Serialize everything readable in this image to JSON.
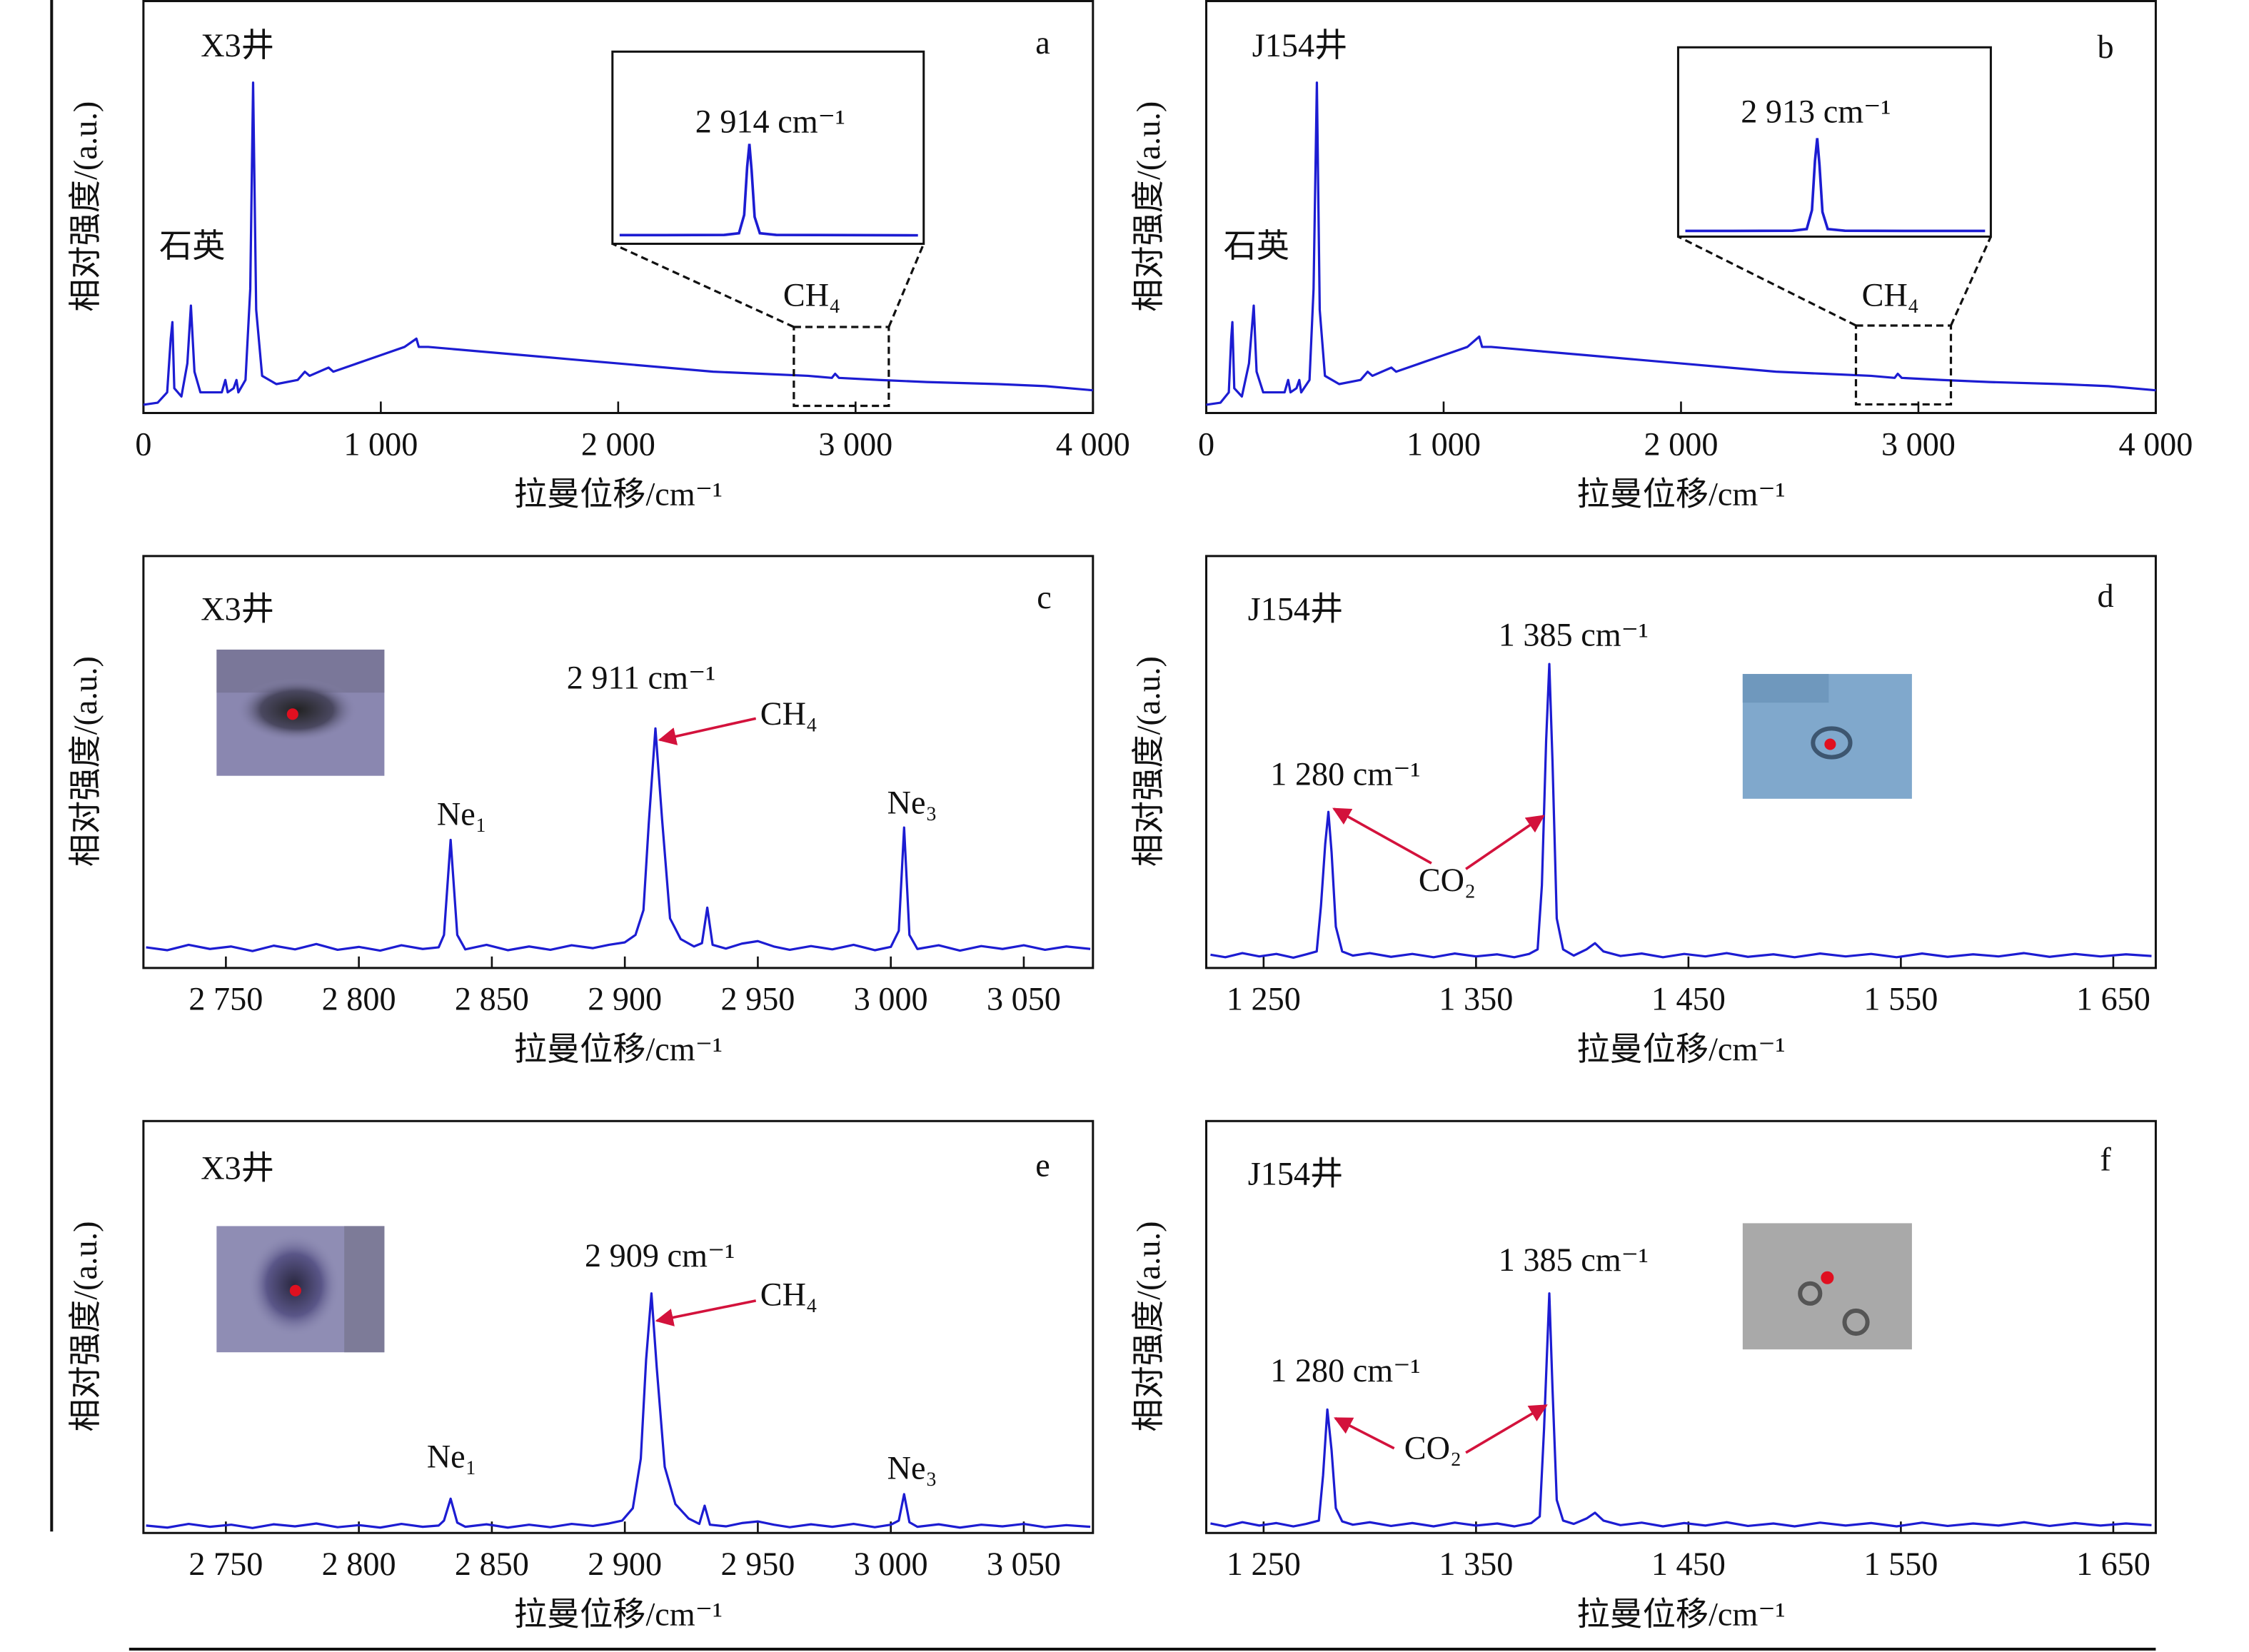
{
  "chart_data": [
    {
      "type": "line",
      "title": "X3井",
      "panel_label": "a",
      "xlabel": "拉曼位移/cm⁻¹",
      "ylabel": "相对强度/(a.u.)",
      "color": "#1c1cd2",
      "xlim": [
        0,
        4000
      ],
      "ylim": [
        0,
        100
      ],
      "xticks": [
        0,
        {
          "value": 1000,
          "label": "1 000"
        },
        {
          "value": 2000,
          "label": "2 000"
        },
        {
          "value": 3000,
          "label": "3 000"
        },
        {
          "value": 4000,
          "label": "4 000"
        }
      ],
      "x": [
        0,
        60,
        100,
        115,
        122,
        130,
        160,
        185,
        200,
        215,
        240,
        330,
        345,
        355,
        380,
        392,
        400,
        430,
        450,
        462,
        475,
        500,
        560,
        650,
        680,
        700,
        780,
        800,
        900,
        1000,
        1100,
        1150,
        1160,
        1200,
        1300,
        1400,
        1600,
        1800,
        2000,
        2200,
        2400,
        2600,
        2800,
        2900,
        2914,
        2930,
        3100,
        3300,
        3600,
        3800,
        4000
      ],
      "values": [
        2,
        2.5,
        5,
        18,
        22,
        6,
        4,
        12,
        26,
        10,
        5,
        5,
        8,
        5,
        6,
        8,
        5,
        8,
        30,
        80,
        25,
        9,
        7,
        8,
        10,
        9,
        11,
        10,
        12,
        14,
        16,
        18,
        16,
        16,
        15.5,
        15,
        14,
        13,
        12,
        11,
        10,
        9.5,
        9,
        8.5,
        9.5,
        8.5,
        8,
        7.5,
        7,
        6.5,
        5.5
      ],
      "annotations": [
        "石英",
        "CH₄"
      ],
      "inset": {
        "label": "2 914 cm⁻¹",
        "xlim": [
          2740,
          3140
        ],
        "ylim": [
          0,
          100
        ],
        "x": [
          2740,
          2800,
          2880,
          2900,
          2907,
          2911,
          2914,
          2917,
          2921,
          2928,
          2950,
          3050,
          3140
        ],
        "values": [
          4.5,
          4.5,
          4.6,
          5.5,
          15,
          40,
          52,
          38,
          14,
          5.5,
          4.6,
          4.5,
          4.4
        ]
      }
    },
    {
      "type": "line",
      "title": "J154井",
      "panel_label": "b",
      "xlabel": "拉曼位移/cm⁻¹",
      "ylabel": "相对强度/(a.u.)",
      "color": "#1c1cd2",
      "xlim": [
        0,
        4000
      ],
      "ylim": [
        0,
        100
      ],
      "xticks": [
        0,
        {
          "value": 1000,
          "label": "1 000"
        },
        {
          "value": 2000,
          "label": "2 000"
        },
        {
          "value": 3000,
          "label": "3 000"
        },
        {
          "value": 4000,
          "label": "4 000"
        }
      ],
      "x": [
        0,
        60,
        95,
        105,
        110,
        118,
        150,
        180,
        200,
        212,
        240,
        330,
        345,
        355,
        380,
        392,
        400,
        435,
        452,
        466,
        478,
        500,
        560,
        650,
        680,
        700,
        780,
        800,
        900,
        1000,
        1100,
        1150,
        1162,
        1200,
        1300,
        1400,
        1600,
        1800,
        2000,
        2200,
        2400,
        2600,
        2800,
        2900,
        2913,
        2930,
        3100,
        3300,
        3600,
        3800,
        4000
      ],
      "values": [
        2,
        2.5,
        5,
        18,
        22,
        6,
        4,
        12,
        26,
        10,
        5,
        5,
        8,
        5,
        6,
        8,
        5,
        8,
        30,
        80,
        25,
        9,
        7,
        8,
        10,
        9,
        11,
        10,
        12,
        14,
        16,
        18.5,
        16,
        16,
        15.5,
        15,
        14,
        13,
        12,
        11,
        10,
        9.5,
        9,
        8.5,
        9.5,
        8.5,
        8,
        7.5,
        7,
        6.5,
        5.5
      ],
      "annotations": [
        "石英",
        "CH₄"
      ],
      "inset": {
        "label": "2 913 cm⁻¹",
        "xlim": [
          2737,
          3137
        ],
        "ylim": [
          0,
          100
        ],
        "x": [
          2737,
          2800,
          2880,
          2899,
          2906,
          2910,
          2913,
          2916,
          2920,
          2927,
          2950,
          3050,
          3137
        ],
        "values": [
          3,
          3,
          3.1,
          4,
          14,
          40,
          52,
          38,
          13,
          4,
          3.1,
          3,
          3
        ]
      }
    },
    {
      "type": "line",
      "title": "X3井",
      "panel_label": "c",
      "xlabel": "拉曼位移/cm⁻¹",
      "ylabel": "相对强度/(a.u.)",
      "color": "#1c1cd2",
      "xlim": [
        2719,
        3076
      ],
      "ylim": [
        0,
        100
      ],
      "xticks": [
        {
          "value": 2750,
          "label": "2 750"
        },
        {
          "value": 2800,
          "label": "2 800"
        },
        {
          "value": 2850,
          "label": "2 850"
        },
        {
          "value": 2900,
          "label": "2 900"
        },
        {
          "value": 2950,
          "label": "2 950"
        },
        {
          "value": 3000,
          "label": "3 000"
        },
        {
          "value": 3050,
          "label": "3 050"
        }
      ],
      "x": [
        2720,
        2728,
        2736,
        2744,
        2752,
        2760,
        2768,
        2776,
        2784,
        2792,
        2800,
        2808,
        2816,
        2824,
        2830,
        2832,
        2834.5,
        2837,
        2840,
        2848,
        2856,
        2864,
        2872,
        2880,
        2888,
        2894,
        2900,
        2904,
        2907,
        2909,
        2911.5,
        2914,
        2917,
        2921,
        2926,
        2929,
        2931,
        2933,
        2938,
        2944,
        2950,
        2956,
        2962,
        2970,
        2978,
        2986,
        2994,
        3000,
        3003,
        3005,
        3007,
        3010,
        3018,
        3026,
        3034,
        3042,
        3050,
        3058,
        3066,
        3075
      ],
      "values": [
        5,
        4.3,
        5.6,
        4.6,
        5.2,
        4.1,
        5.4,
        4.5,
        5.8,
        4.4,
        5.1,
        4.2,
        5.5,
        4.6,
        5,
        8,
        31,
        8,
        4.5,
        5.6,
        4.3,
        5.2,
        4.4,
        5.5,
        4.8,
        5.6,
        6.2,
        8,
        14,
        35,
        58,
        36,
        12,
        7,
        5.2,
        6,
        14.6,
        5.6,
        4.7,
        5.9,
        6.5,
        5.2,
        4.4,
        5.3,
        4.5,
        5.6,
        4.3,
        5.1,
        9,
        34,
        8,
        4.6,
        5.5,
        4.2,
        5.3,
        4.6,
        5.5,
        4.4,
        5.2,
        4.6
      ],
      "annotations": [
        "2 911 cm⁻¹",
        "CH₄",
        "Ne₁",
        "Ne₃"
      ]
    },
    {
      "type": "line",
      "title": "J154井",
      "panel_label": "d",
      "xlabel": "拉曼位移/cm⁻¹",
      "ylabel": "相对强度/(a.u.)",
      "color": "#1c1cd2",
      "xlim": [
        1223,
        1670
      ],
      "ylim": [
        0,
        100
      ],
      "xticks": [
        {
          "value": 1250,
          "label": "1 250"
        },
        {
          "value": 1350,
          "label": "1 350"
        },
        {
          "value": 1450,
          "label": "1 450"
        },
        {
          "value": 1550,
          "label": "1 550"
        },
        {
          "value": 1650,
          "label": "1 650"
        }
      ],
      "x": [
        1225,
        1232,
        1240,
        1248,
        1256,
        1264,
        1270,
        1275,
        1277,
        1279,
        1280.5,
        1282,
        1284,
        1287,
        1292,
        1300,
        1310,
        1320,
        1330,
        1340,
        1350,
        1360,
        1368,
        1375,
        1379,
        1381,
        1383,
        1384.5,
        1386,
        1388,
        1391,
        1396,
        1402,
        1406,
        1410,
        1418,
        1428,
        1438,
        1448,
        1458,
        1468,
        1478,
        1490,
        1500,
        1512,
        1524,
        1536,
        1548,
        1560,
        1572,
        1584,
        1596,
        1608,
        1620,
        1632,
        1644,
        1656,
        1668
      ],
      "values": [
        3.2,
        2.6,
        3.6,
        2.8,
        3.4,
        2.5,
        3.3,
        4,
        15,
        30,
        37.8,
        28,
        10,
        4,
        3,
        3.6,
        2.7,
        3.4,
        2.6,
        3.5,
        2.8,
        3.3,
        2.6,
        3.4,
        4.5,
        20,
        55,
        73.6,
        50,
        12,
        4.5,
        3,
        4.5,
        6,
        4,
        2.9,
        3.5,
        2.6,
        3.4,
        2.8,
        3.6,
        2.7,
        3.3,
        2.6,
        3.5,
        2.8,
        3.4,
        2.6,
        3.5,
        2.7,
        3.3,
        2.8,
        3.6,
        2.7,
        3.4,
        2.8,
        3.3,
        2.9
      ],
      "annotations": [
        "1 385 cm⁻¹",
        "1 280 cm⁻¹",
        "CO₂"
      ]
    },
    {
      "type": "line",
      "title": "X3井",
      "panel_label": "e",
      "xlabel": "拉曼位移/cm⁻¹",
      "ylabel": "相对强度/(a.u.)",
      "color": "#1c1cd2",
      "xlim": [
        2719,
        3076
      ],
      "ylim": [
        0,
        100
      ],
      "xticks": [
        {
          "value": 2750,
          "label": "2 750"
        },
        {
          "value": 2800,
          "label": "2 800"
        },
        {
          "value": 2850,
          "label": "2 850"
        },
        {
          "value": 2900,
          "label": "2 900"
        },
        {
          "value": 2950,
          "label": "2 950"
        },
        {
          "value": 3000,
          "label": "3 000"
        },
        {
          "value": 3050,
          "label": "3 050"
        }
      ],
      "x": [
        2720,
        2728,
        2736,
        2744,
        2752,
        2760,
        2768,
        2776,
        2784,
        2792,
        2800,
        2808,
        2816,
        2824,
        2830,
        2832,
        2834.5,
        2837,
        2840,
        2848,
        2856,
        2864,
        2872,
        2880,
        2888,
        2894,
        2899,
        2903,
        2906,
        2908,
        2910,
        2912,
        2915,
        2919,
        2924,
        2928,
        2930,
        2932,
        2938,
        2944,
        2950,
        2956,
        2962,
        2970,
        2978,
        2986,
        2994,
        3000,
        3003,
        3005,
        3007,
        3010,
        3018,
        3026,
        3034,
        3042,
        3050,
        3058,
        3066,
        3075
      ],
      "values": [
        1.8,
        1.3,
        2.2,
        1.5,
        2,
        1.2,
        2.1,
        1.6,
        2.3,
        1.4,
        1.9,
        1.3,
        2.2,
        1.5,
        1.8,
        3,
        8.3,
        2.5,
        1.5,
        2.1,
        1.3,
        2,
        1.4,
        2.2,
        1.7,
        2.3,
        3,
        6,
        18,
        42,
        58,
        40,
        16,
        7,
        3.5,
        2.2,
        6.6,
        2,
        1.6,
        2.4,
        2.8,
        2,
        1.4,
        2.1,
        1.5,
        2.2,
        1.4,
        2,
        3,
        9.4,
        2.6,
        1.5,
        2.1,
        1.3,
        2,
        1.6,
        2.2,
        1.4,
        1.9,
        1.5
      ],
      "annotations": [
        "2 909 cm⁻¹",
        "CH₄",
        "Ne₁",
        "Ne₃"
      ]
    },
    {
      "type": "line",
      "title": "J154井",
      "panel_label": "f",
      "xlabel": "拉曼位移/cm⁻¹",
      "ylabel": "相对强度/(a.u.)",
      "color": "#1c1cd2",
      "xlim": [
        1223,
        1670
      ],
      "ylim": [
        0,
        100
      ],
      "xticks": [
        {
          "value": 1250,
          "label": "1 250"
        },
        {
          "value": 1350,
          "label": "1 350"
        },
        {
          "value": 1450,
          "label": "1 450"
        },
        {
          "value": 1550,
          "label": "1 550"
        },
        {
          "value": 1650,
          "label": "1 650"
        }
      ],
      "x": [
        1225,
        1232,
        1240,
        1248,
        1256,
        1264,
        1270,
        1276,
        1278,
        1280,
        1282,
        1284,
        1287,
        1292,
        1300,
        1310,
        1320,
        1330,
        1340,
        1350,
        1360,
        1368,
        1376,
        1380,
        1382,
        1384.5,
        1386,
        1388,
        1391,
        1396,
        1402,
        1406,
        1410,
        1418,
        1428,
        1438,
        1448,
        1458,
        1468,
        1478,
        1490,
        1500,
        1512,
        1524,
        1536,
        1548,
        1560,
        1572,
        1584,
        1596,
        1608,
        1620,
        1632,
        1644,
        1656,
        1668
      ],
      "values": [
        2.3,
        1.6,
        2.6,
        1.8,
        2.4,
        1.6,
        2.2,
        3,
        14,
        29.9,
        20,
        6,
        2.8,
        2,
        2.6,
        1.7,
        2.4,
        1.6,
        2.5,
        1.8,
        2.3,
        1.6,
        2.4,
        4,
        25,
        58,
        35,
        8,
        3,
        2.2,
        3.5,
        4.9,
        3,
        1.9,
        2.5,
        1.6,
        2.4,
        1.8,
        2.6,
        1.7,
        2.3,
        1.6,
        2.5,
        1.8,
        2.4,
        1.6,
        2.5,
        1.7,
        2.3,
        1.8,
        2.6,
        1.7,
        2.4,
        1.8,
        2.3,
        1.9
      ],
      "annotations": [
        "1 385 cm⁻¹",
        "1 280 cm⁻¹",
        "CO₂"
      ]
    }
  ]
}
